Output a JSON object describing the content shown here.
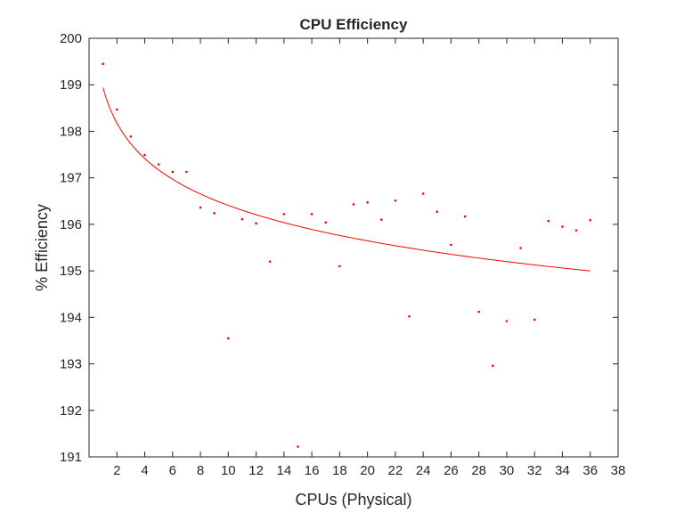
{
  "chart_data": {
    "type": "scatter",
    "title": "CPU Efficiency",
    "xlabel": "CPUs (Physical)",
    "ylabel": "% Efficiency",
    "xlim": [
      0,
      38
    ],
    "ylim": [
      191,
      200
    ],
    "xticks": [
      2,
      4,
      6,
      8,
      10,
      12,
      14,
      16,
      18,
      20,
      22,
      24,
      26,
      28,
      30,
      32,
      34,
      36,
      38
    ],
    "yticks": [
      191,
      192,
      193,
      194,
      195,
      196,
      197,
      198,
      199,
      200
    ],
    "grid": false,
    "colors": {
      "points": "#ff0000",
      "fit": "#ff0000",
      "axes": "#262626"
    },
    "series": [
      {
        "type": "scatter",
        "x": [
          1,
          2,
          3,
          4,
          5,
          6,
          7,
          8,
          9,
          10,
          11,
          12,
          13,
          14,
          15,
          16,
          17,
          18,
          19,
          20,
          21,
          22,
          23,
          24,
          25,
          26,
          27,
          28,
          29,
          30,
          31,
          32,
          33,
          34,
          35,
          36
        ],
        "y": [
          199.45,
          198.47,
          197.89,
          197.49,
          197.29,
          197.13,
          197.13,
          196.36,
          196.24,
          193.55,
          196.11,
          196.02,
          195.2,
          196.22,
          191.22,
          196.22,
          196.04,
          195.1,
          196.43,
          196.47,
          196.1,
          196.51,
          194.02,
          196.66,
          196.27,
          195.56,
          196.17,
          194.12,
          192.96,
          193.92,
          195.49,
          193.95,
          196.07,
          195.95,
          195.87,
          196.09
        ]
      },
      {
        "type": "line",
        "fit": "logarithmic",
        "x_range": [
          1,
          36
        ],
        "coefficients": {
          "a": 198.94,
          "b": -1.1
        }
      }
    ]
  }
}
